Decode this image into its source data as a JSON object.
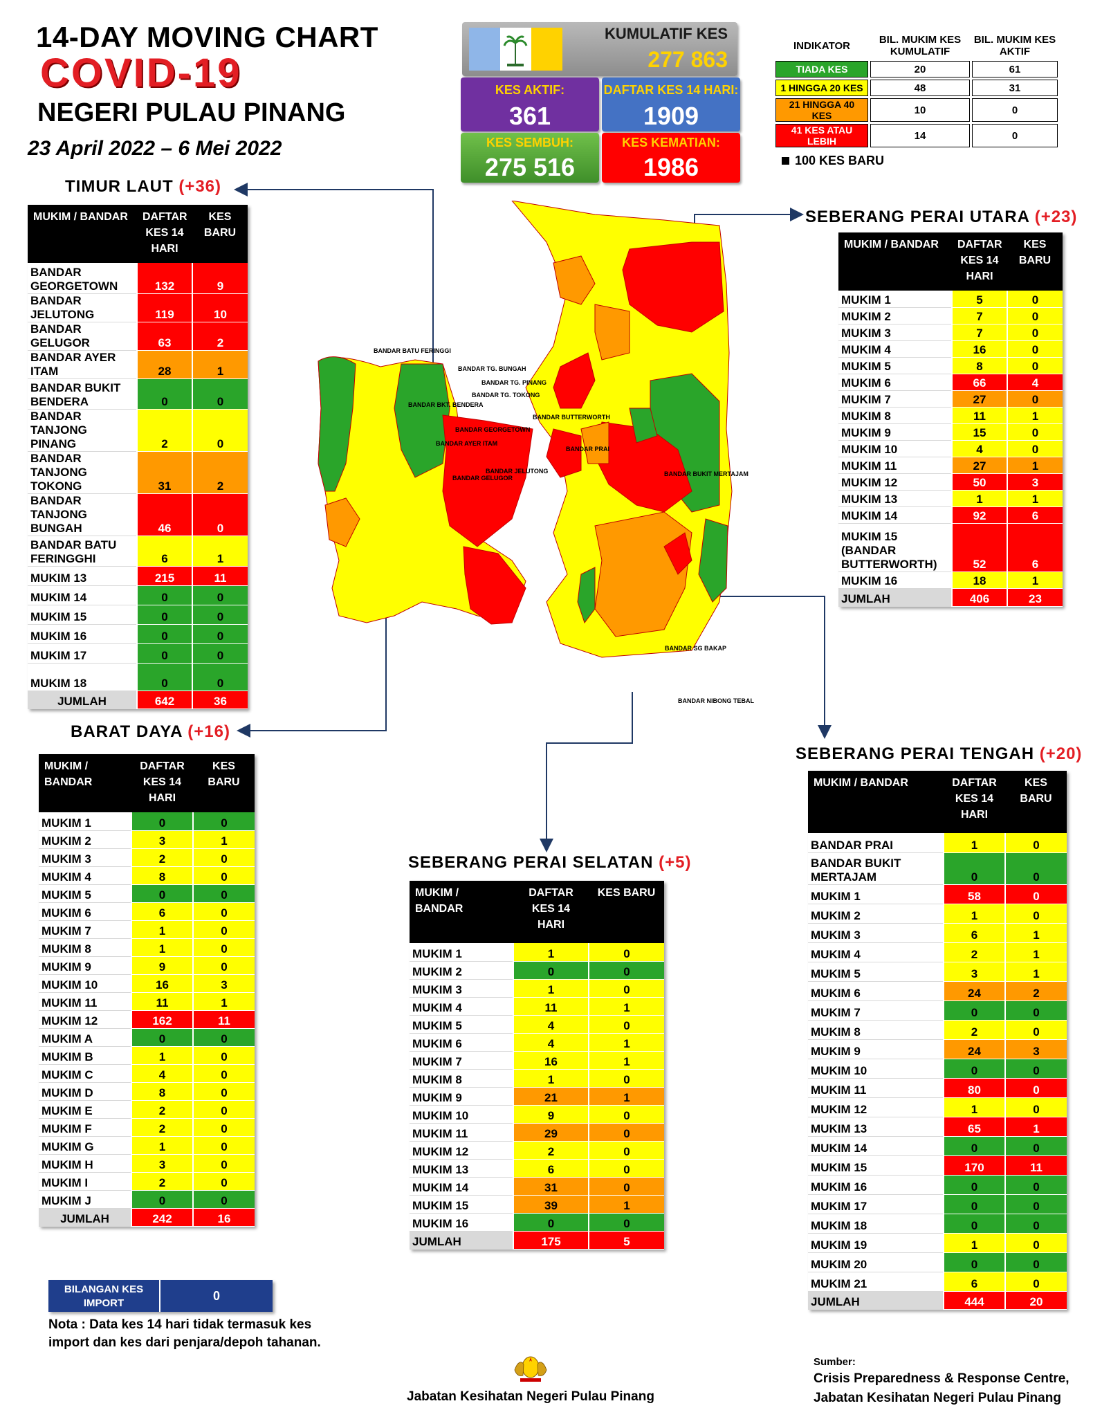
{
  "header": {
    "title_line1": "14-DAY MOVING CHART",
    "title_line2": "COVID-19",
    "title_line3": "NEGERI PULAU PINANG",
    "date_range": "23 April 2022 – 6 Mei 2022"
  },
  "stats": {
    "kumulatif_label": "KUMULATIF KES",
    "kumulatif_value": "277 863",
    "aktif_label": "KES AKTIF:",
    "aktif_value": "361",
    "daftar_label": "DAFTAR KES 14 HARI:",
    "daftar_value": "1909",
    "sembuh_label": "KES SEMBUH:",
    "sembuh_value": "275 516",
    "kematian_label": "KES KEMATIAN:",
    "kematian_value": "1986"
  },
  "indicator": {
    "head_label": "INDIKATOR",
    "col1": "BIL. MUKIM KES KUMULATIF",
    "col2": "BIL. MUKIM KES AKTIF",
    "rows": [
      {
        "label": "TIADA KES",
        "kumulatif": "20",
        "aktif": "61",
        "color": "green"
      },
      {
        "label": "1 HINGGA 20 KES",
        "kumulatif": "48",
        "aktif": "31",
        "color": "yellow"
      },
      {
        "label": "21 HINGGA 40 KES",
        "kumulatif": "10",
        "aktif": "0",
        "color": "orange"
      },
      {
        "label": "41 KES ATAU LEBIH",
        "kumulatif": "14",
        "aktif": "0",
        "color": "red"
      }
    ],
    "legend_100": "100 KES BARU"
  },
  "colors": {
    "green": "#2aa52a",
    "yellow": "#ffff00",
    "orange": "#ff9900",
    "red": "#ff0000",
    "purple": "#7030a0",
    "blue": "#4472c4"
  },
  "map_labels": {
    "batu_feringghi": "BANDAR BATU FERINGGI",
    "tg_bungah": "BANDAR TG. BUNGAH",
    "tg_pinang": "BANDAR TG. PINANG",
    "tg_tokong": "BANDAR TG. TOKONG",
    "bukit_bendera": "BANDAR BKT. BENDERA",
    "georgetown": "BANDAR GEORGETOWN",
    "ayer_itam": "BANDAR AYER ITAM",
    "jelutong": "BANDAR JELUTONG",
    "gelugor": "BANDAR GELUGOR",
    "butterworth": "BANDAR BUTTERWORTH",
    "prai": "BANDAR PRAI",
    "bukit_mertajam": "BANDAR BUKIT MERTAJAM",
    "sg_bakap": "BANDAR SG BAKAP",
    "nibong_tebal": "BANDAR NIBONG TEBAL"
  },
  "chart_data": [
    {
      "type": "table",
      "title": "TIMUR LAUT",
      "delta": "(+36)",
      "headers": [
        "MUKIM / BANDAR",
        "DAFTAR KES 14 HARI",
        "KES BARU"
      ],
      "rows": [
        {
          "name": "BANDAR GEORGETOWN",
          "cases_14d": 132,
          "new": 9,
          "c14": "red",
          "cn": "red"
        },
        {
          "name": "BANDAR JELUTONG",
          "cases_14d": 119,
          "new": 10,
          "c14": "red",
          "cn": "red"
        },
        {
          "name": "BANDAR GELUGOR",
          "cases_14d": 63,
          "new": 2,
          "c14": "red",
          "cn": "red"
        },
        {
          "name": "BANDAR AYER ITAM",
          "cases_14d": 28,
          "new": 1,
          "c14": "orange",
          "cn": "orange"
        },
        {
          "name": "BANDAR BUKIT BENDERA",
          "cases_14d": 0,
          "new": 0,
          "c14": "green",
          "cn": "green"
        },
        {
          "name": "BANDAR TANJONG PINANG",
          "cases_14d": 2,
          "new": 0,
          "c14": "yellow",
          "cn": "yellow"
        },
        {
          "name": "BANDAR TANJONG TOKONG",
          "cases_14d": 31,
          "new": 2,
          "c14": "orange",
          "cn": "orange"
        },
        {
          "name": "BANDAR TANJONG BUNGAH",
          "cases_14d": 46,
          "new": 0,
          "c14": "red",
          "cn": "red"
        },
        {
          "name": "BANDAR BATU FERINGGHI",
          "cases_14d": 6,
          "new": 1,
          "c14": "yellow",
          "cn": "yellow"
        },
        {
          "name": "MUKIM 13",
          "cases_14d": 215,
          "new": 11,
          "c14": "red",
          "cn": "red"
        },
        {
          "name": "MUKIM 14",
          "cases_14d": 0,
          "new": 0,
          "c14": "green",
          "cn": "green"
        },
        {
          "name": "MUKIM 15",
          "cases_14d": 0,
          "new": 0,
          "c14": "green",
          "cn": "green"
        },
        {
          "name": "MUKIM 16",
          "cases_14d": 0,
          "new": 0,
          "c14": "green",
          "cn": "green"
        },
        {
          "name": "MUKIM 17",
          "cases_14d": 0,
          "new": 0,
          "c14": "green",
          "cn": "green"
        },
        {
          "name": "MUKIM 18",
          "cases_14d": 0,
          "new": 0,
          "c14": "green",
          "cn": "green"
        }
      ],
      "total": {
        "name": "JUMLAH",
        "cases_14d": 642,
        "new": 36
      }
    },
    {
      "type": "table",
      "title": "BARAT DAYA",
      "delta": "(+16)",
      "headers": [
        "MUKIM / BANDAR",
        "DAFTAR KES 14 HARI",
        "KES BARU"
      ],
      "rows": [
        {
          "name": "MUKIM 1",
          "cases_14d": 0,
          "new": 0,
          "c14": "green",
          "cn": "green"
        },
        {
          "name": "MUKIM 2",
          "cases_14d": 3,
          "new": 1,
          "c14": "yellow",
          "cn": "yellow"
        },
        {
          "name": "MUKIM 3",
          "cases_14d": 2,
          "new": 0,
          "c14": "yellow",
          "cn": "yellow"
        },
        {
          "name": "MUKIM 4",
          "cases_14d": 8,
          "new": 0,
          "c14": "yellow",
          "cn": "yellow"
        },
        {
          "name": "MUKIM 5",
          "cases_14d": 0,
          "new": 0,
          "c14": "green",
          "cn": "green"
        },
        {
          "name": "MUKIM 6",
          "cases_14d": 6,
          "new": 0,
          "c14": "yellow",
          "cn": "yellow"
        },
        {
          "name": "MUKIM 7",
          "cases_14d": 1,
          "new": 0,
          "c14": "yellow",
          "cn": "yellow"
        },
        {
          "name": "MUKIM 8",
          "cases_14d": 1,
          "new": 0,
          "c14": "yellow",
          "cn": "yellow"
        },
        {
          "name": "MUKIM 9",
          "cases_14d": 9,
          "new": 0,
          "c14": "yellow",
          "cn": "yellow"
        },
        {
          "name": "MUKIM 10",
          "cases_14d": 16,
          "new": 3,
          "c14": "yellow",
          "cn": "yellow"
        },
        {
          "name": "MUKIM 11",
          "cases_14d": 11,
          "new": 1,
          "c14": "yellow",
          "cn": "yellow"
        },
        {
          "name": "MUKIM 12",
          "cases_14d": 162,
          "new": 11,
          "c14": "red",
          "cn": "red"
        },
        {
          "name": "MUKIM A",
          "cases_14d": 0,
          "new": 0,
          "c14": "green",
          "cn": "green"
        },
        {
          "name": "MUKIM B",
          "cases_14d": 1,
          "new": 0,
          "c14": "yellow",
          "cn": "yellow"
        },
        {
          "name": "MUKIM C",
          "cases_14d": 4,
          "new": 0,
          "c14": "yellow",
          "cn": "yellow"
        },
        {
          "name": "MUKIM D",
          "cases_14d": 8,
          "new": 0,
          "c14": "yellow",
          "cn": "yellow"
        },
        {
          "name": "MUKIM E",
          "cases_14d": 2,
          "new": 0,
          "c14": "yellow",
          "cn": "yellow"
        },
        {
          "name": "MUKIM F",
          "cases_14d": 2,
          "new": 0,
          "c14": "yellow",
          "cn": "yellow"
        },
        {
          "name": "MUKIM G",
          "cases_14d": 1,
          "new": 0,
          "c14": "yellow",
          "cn": "yellow"
        },
        {
          "name": "MUKIM H",
          "cases_14d": 3,
          "new": 0,
          "c14": "yellow",
          "cn": "yellow"
        },
        {
          "name": "MUKIM I",
          "cases_14d": 2,
          "new": 0,
          "c14": "yellow",
          "cn": "yellow"
        },
        {
          "name": "MUKIM J",
          "cases_14d": 0,
          "new": 0,
          "c14": "green",
          "cn": "green"
        }
      ],
      "total": {
        "name": "JUMLAH",
        "cases_14d": 242,
        "new": 16
      }
    },
    {
      "type": "table",
      "title": "SEBERANG PERAI UTARA",
      "delta": "(+23)",
      "headers": [
        "MUKIM / BANDAR",
        "DAFTAR KES 14 HARI",
        "KES BARU"
      ],
      "rows": [
        {
          "name": "MUKIM 1",
          "cases_14d": 5,
          "new": 0,
          "c14": "yellow",
          "cn": "yellow"
        },
        {
          "name": "MUKIM 2",
          "cases_14d": 7,
          "new": 0,
          "c14": "yellow",
          "cn": "yellow"
        },
        {
          "name": "MUKIM 3",
          "cases_14d": 7,
          "new": 0,
          "c14": "yellow",
          "cn": "yellow"
        },
        {
          "name": "MUKIM 4",
          "cases_14d": 16,
          "new": 0,
          "c14": "yellow",
          "cn": "yellow"
        },
        {
          "name": "MUKIM 5",
          "cases_14d": 8,
          "new": 0,
          "c14": "yellow",
          "cn": "yellow"
        },
        {
          "name": "MUKIM 6",
          "cases_14d": 66,
          "new": 4,
          "c14": "red",
          "cn": "red"
        },
        {
          "name": "MUKIM 7",
          "cases_14d": 27,
          "new": 0,
          "c14": "orange",
          "cn": "orange"
        },
        {
          "name": "MUKIM 8",
          "cases_14d": 11,
          "new": 1,
          "c14": "yellow",
          "cn": "yellow"
        },
        {
          "name": "MUKIM 9",
          "cases_14d": 15,
          "new": 0,
          "c14": "yellow",
          "cn": "yellow"
        },
        {
          "name": "MUKIM 10",
          "cases_14d": 4,
          "new": 0,
          "c14": "yellow",
          "cn": "yellow"
        },
        {
          "name": "MUKIM 11",
          "cases_14d": 27,
          "new": 1,
          "c14": "orange",
          "cn": "orange"
        },
        {
          "name": "MUKIM 12",
          "cases_14d": 50,
          "new": 3,
          "c14": "red",
          "cn": "red"
        },
        {
          "name": "MUKIM 13",
          "cases_14d": 1,
          "new": 1,
          "c14": "yellow",
          "cn": "yellow"
        },
        {
          "name": "MUKIM 14",
          "cases_14d": 92,
          "new": 6,
          "c14": "red",
          "cn": "red"
        },
        {
          "name": "MUKIM 15 (BANDAR BUTTERWORTH)",
          "cases_14d": 52,
          "new": 6,
          "c14": "red",
          "cn": "red"
        },
        {
          "name": "MUKIM 16",
          "cases_14d": 18,
          "new": 1,
          "c14": "yellow",
          "cn": "yellow"
        }
      ],
      "total": {
        "name": "JUMLAH",
        "cases_14d": 406,
        "new": 23
      }
    },
    {
      "type": "table",
      "title": "SEBERANG PERAI SELATAN",
      "delta": "(+5)",
      "headers": [
        "MUKIM / BANDAR",
        "DAFTAR KES 14 HARI",
        "KES BARU"
      ],
      "rows": [
        {
          "name": "MUKIM 1",
          "cases_14d": 1,
          "new": 0,
          "c14": "yellow",
          "cn": "yellow"
        },
        {
          "name": "MUKIM 2",
          "cases_14d": 0,
          "new": 0,
          "c14": "green",
          "cn": "green"
        },
        {
          "name": "MUKIM 3",
          "cases_14d": 1,
          "new": 0,
          "c14": "yellow",
          "cn": "yellow"
        },
        {
          "name": "MUKIM 4",
          "cases_14d": 11,
          "new": 1,
          "c14": "yellow",
          "cn": "yellow"
        },
        {
          "name": "MUKIM 5",
          "cases_14d": 4,
          "new": 0,
          "c14": "yellow",
          "cn": "yellow"
        },
        {
          "name": "MUKIM 6",
          "cases_14d": 4,
          "new": 1,
          "c14": "yellow",
          "cn": "yellow"
        },
        {
          "name": "MUKIM 7",
          "cases_14d": 16,
          "new": 1,
          "c14": "yellow",
          "cn": "yellow"
        },
        {
          "name": "MUKIM 8",
          "cases_14d": 1,
          "new": 0,
          "c14": "yellow",
          "cn": "yellow"
        },
        {
          "name": "MUKIM 9",
          "cases_14d": 21,
          "new": 1,
          "c14": "orange",
          "cn": "orange"
        },
        {
          "name": "MUKIM 10",
          "cases_14d": 9,
          "new": 0,
          "c14": "yellow",
          "cn": "yellow"
        },
        {
          "name": "MUKIM 11",
          "cases_14d": 29,
          "new": 0,
          "c14": "orange",
          "cn": "orange"
        },
        {
          "name": "MUKIM 12",
          "cases_14d": 2,
          "new": 0,
          "c14": "yellow",
          "cn": "yellow"
        },
        {
          "name": "MUKIM 13",
          "cases_14d": 6,
          "new": 0,
          "c14": "yellow",
          "cn": "yellow"
        },
        {
          "name": "MUKIM 14",
          "cases_14d": 31,
          "new": 0,
          "c14": "orange",
          "cn": "orange"
        },
        {
          "name": "MUKIM 15",
          "cases_14d": 39,
          "new": 1,
          "c14": "orange",
          "cn": "orange"
        },
        {
          "name": "MUKIM 16",
          "cases_14d": 0,
          "new": 0,
          "c14": "green",
          "cn": "green"
        }
      ],
      "total": {
        "name": "JUMLAH",
        "cases_14d": 175,
        "new": 5
      }
    },
    {
      "type": "table",
      "title": "SEBERANG PERAI TENGAH",
      "delta": "(+20)",
      "headers": [
        "MUKIM / BANDAR",
        "DAFTAR KES 14 HARI",
        "KES BARU"
      ],
      "rows": [
        {
          "name": "BANDAR PRAI",
          "cases_14d": 1,
          "new": 0,
          "c14": "yellow",
          "cn": "yellow"
        },
        {
          "name": "BANDAR BUKIT MERTAJAM",
          "cases_14d": 0,
          "new": 0,
          "c14": "green",
          "cn": "green"
        },
        {
          "name": "MUKIM 1",
          "cases_14d": 58,
          "new": 0,
          "c14": "red",
          "cn": "red"
        },
        {
          "name": "MUKIM 2",
          "cases_14d": 1,
          "new": 0,
          "c14": "yellow",
          "cn": "yellow"
        },
        {
          "name": "MUKIM 3",
          "cases_14d": 6,
          "new": 1,
          "c14": "yellow",
          "cn": "yellow"
        },
        {
          "name": "MUKIM 4",
          "cases_14d": 2,
          "new": 1,
          "c14": "yellow",
          "cn": "yellow"
        },
        {
          "name": "MUKIM 5",
          "cases_14d": 3,
          "new": 1,
          "c14": "yellow",
          "cn": "yellow"
        },
        {
          "name": "MUKIM 6",
          "cases_14d": 24,
          "new": 2,
          "c14": "orange",
          "cn": "orange"
        },
        {
          "name": "MUKIM 7",
          "cases_14d": 0,
          "new": 0,
          "c14": "green",
          "cn": "green"
        },
        {
          "name": "MUKIM 8",
          "cases_14d": 2,
          "new": 0,
          "c14": "yellow",
          "cn": "yellow"
        },
        {
          "name": "MUKIM 9",
          "cases_14d": 24,
          "new": 3,
          "c14": "orange",
          "cn": "orange"
        },
        {
          "name": "MUKIM 10",
          "cases_14d": 0,
          "new": 0,
          "c14": "green",
          "cn": "green"
        },
        {
          "name": "MUKIM 11",
          "cases_14d": 80,
          "new": 0,
          "c14": "red",
          "cn": "red"
        },
        {
          "name": "MUKIM 12",
          "cases_14d": 1,
          "new": 0,
          "c14": "yellow",
          "cn": "yellow"
        },
        {
          "name": "MUKIM 13",
          "cases_14d": 65,
          "new": 1,
          "c14": "red",
          "cn": "red"
        },
        {
          "name": "MUKIM 14",
          "cases_14d": 0,
          "new": 0,
          "c14": "green",
          "cn": "green"
        },
        {
          "name": "MUKIM 15",
          "cases_14d": 170,
          "new": 11,
          "c14": "red",
          "cn": "red"
        },
        {
          "name": "MUKIM 16",
          "cases_14d": 0,
          "new": 0,
          "c14": "green",
          "cn": "green"
        },
        {
          "name": "MUKIM 17",
          "cases_14d": 0,
          "new": 0,
          "c14": "green",
          "cn": "green"
        },
        {
          "name": "MUKIM 18",
          "cases_14d": 0,
          "new": 0,
          "c14": "green",
          "cn": "green"
        },
        {
          "name": "MUKIM 19",
          "cases_14d": 1,
          "new": 0,
          "c14": "yellow",
          "cn": "yellow"
        },
        {
          "name": "MUKIM 20",
          "cases_14d": 0,
          "new": 0,
          "c14": "green",
          "cn": "green"
        },
        {
          "name": "MUKIM 21",
          "cases_14d": 6,
          "new": 0,
          "c14": "yellow",
          "cn": "yellow"
        }
      ],
      "total": {
        "name": "JUMLAH",
        "cases_14d": 444,
        "new": 20
      }
    }
  ],
  "import_box": {
    "label": "BILANGAN KES IMPORT",
    "value": "0"
  },
  "note": "Nota : Data kes 14 hari tidak termasuk kes import dan kes dari penjara/depoh tahanan.",
  "footer": {
    "dept": "Jabatan Kesihatan Negeri Pulau Pinang",
    "sumber_label": "Sumber:",
    "sumber_line1": "Crisis Preparedness & Response Centre,",
    "sumber_line2": "Jabatan Kesihatan Negeri Pulau Pinang"
  }
}
